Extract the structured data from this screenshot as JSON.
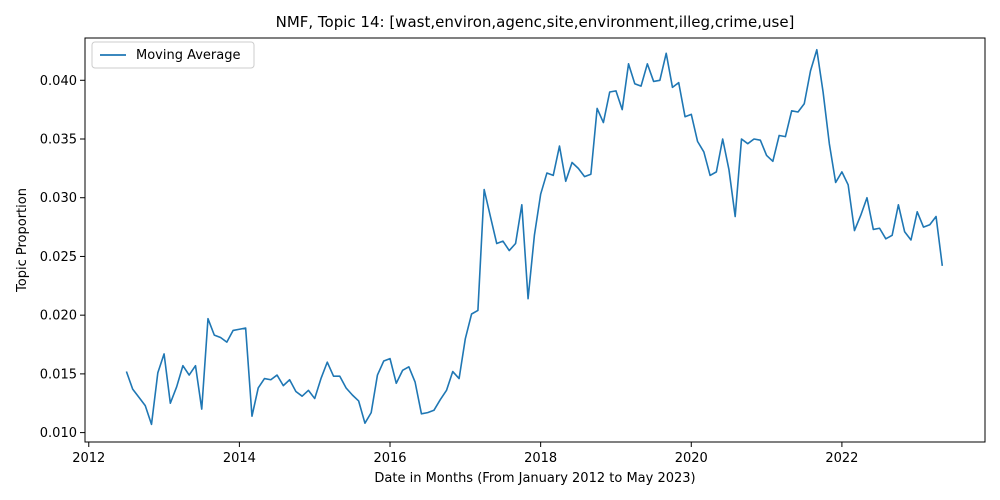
{
  "chart_data": {
    "type": "line",
    "title": "NMF, Topic 14: [wast,environ,agenc,site,environment,illeg,crime,use]",
    "xlabel": "Date in Months (From January 2012 to May 2023)",
    "ylabel": "Topic Proportion",
    "xlim": [
      2011.95,
      2023.9
    ],
    "ylim": [
      0.0092,
      0.0436
    ],
    "x_ticks": [
      2012,
      2014,
      2016,
      2018,
      2020,
      2022
    ],
    "y_ticks": [
      0.01,
      0.015,
      0.02,
      0.025,
      0.03,
      0.035,
      0.04
    ],
    "y_tick_labels": [
      "0.010",
      "0.015",
      "0.020",
      "0.025",
      "0.030",
      "0.035",
      "0.040"
    ],
    "grid": false,
    "legend_position": "top-left",
    "series": [
      {
        "name": "Moving Average",
        "color": "#1f77b4",
        "x": [
          2012.5,
          2012.583,
          2012.667,
          2012.75,
          2012.833,
          2012.917,
          2013.0,
          2013.083,
          2013.167,
          2013.25,
          2013.333,
          2013.417,
          2013.5,
          2013.583,
          2013.667,
          2013.75,
          2013.833,
          2013.917,
          2014.0,
          2014.083,
          2014.167,
          2014.25,
          2014.333,
          2014.417,
          2014.5,
          2014.583,
          2014.667,
          2014.75,
          2014.833,
          2014.917,
          2015.0,
          2015.083,
          2015.167,
          2015.25,
          2015.333,
          2015.417,
          2015.5,
          2015.583,
          2015.667,
          2015.75,
          2015.833,
          2015.917,
          2016.0,
          2016.083,
          2016.167,
          2016.25,
          2016.333,
          2016.417,
          2016.5,
          2016.583,
          2016.667,
          2016.75,
          2016.833,
          2016.917,
          2017.0,
          2017.083,
          2017.167,
          2017.25,
          2017.333,
          2017.417,
          2017.5,
          2017.583,
          2017.667,
          2017.75,
          2017.833,
          2017.917,
          2018.0,
          2018.083,
          2018.167,
          2018.25,
          2018.333,
          2018.417,
          2018.5,
          2018.583,
          2018.667,
          2018.75,
          2018.833,
          2018.917,
          2019.0,
          2019.083,
          2019.167,
          2019.25,
          2019.333,
          2019.417,
          2019.5,
          2019.583,
          2019.667,
          2019.75,
          2019.833,
          2019.917,
          2020.0,
          2020.083,
          2020.167,
          2020.25,
          2020.333,
          2020.417,
          2020.5,
          2020.583,
          2020.667,
          2020.75,
          2020.833,
          2020.917,
          2021.0,
          2021.083,
          2021.167,
          2021.25,
          2021.333,
          2021.417,
          2021.5,
          2021.583,
          2021.667,
          2021.75,
          2021.833,
          2021.917,
          2022.0,
          2022.083,
          2022.167,
          2022.25,
          2022.333,
          2022.417,
          2022.5,
          2022.583,
          2022.667,
          2022.75,
          2022.833,
          2022.917,
          2023.0,
          2023.083,
          2023.167,
          2023.25,
          2023.333
        ],
        "y": [
          0.0152,
          0.0137,
          0.013,
          0.0123,
          0.0107,
          0.0151,
          0.0167,
          0.0125,
          0.0139,
          0.0157,
          0.0149,
          0.0157,
          0.012,
          0.0197,
          0.0183,
          0.0181,
          0.0177,
          0.0187,
          0.0188,
          0.0189,
          0.0114,
          0.0138,
          0.0146,
          0.0145,
          0.0149,
          0.014,
          0.0145,
          0.0135,
          0.0131,
          0.0136,
          0.0129,
          0.0146,
          0.016,
          0.0148,
          0.0148,
          0.0138,
          0.0132,
          0.0127,
          0.0108,
          0.0117,
          0.0149,
          0.0161,
          0.0163,
          0.0142,
          0.0153,
          0.0156,
          0.0143,
          0.0116,
          0.0117,
          0.0119,
          0.0128,
          0.0136,
          0.0152,
          0.0146,
          0.018,
          0.0201,
          0.0204,
          0.0307,
          0.0284,
          0.0261,
          0.0263,
          0.0255,
          0.0261,
          0.0294,
          0.0214,
          0.0268,
          0.0303,
          0.0321,
          0.0319,
          0.0344,
          0.0314,
          0.033,
          0.0325,
          0.0318,
          0.032,
          0.0376,
          0.0364,
          0.039,
          0.0391,
          0.0375,
          0.0414,
          0.0397,
          0.0395,
          0.0414,
          0.0399,
          0.04,
          0.0423,
          0.0394,
          0.0398,
          0.0369,
          0.0371,
          0.0348,
          0.0339,
          0.0319,
          0.0322,
          0.035,
          0.0324,
          0.0284,
          0.035,
          0.0346,
          0.035,
          0.0349,
          0.0336,
          0.0331,
          0.0353,
          0.0352,
          0.0374,
          0.0373,
          0.038,
          0.0408,
          0.0426,
          0.039,
          0.0346,
          0.0313,
          0.0322,
          0.0311,
          0.0272,
          0.0285,
          0.03,
          0.0273,
          0.0274,
          0.0265,
          0.0268,
          0.0294,
          0.0271,
          0.0264,
          0.0288,
          0.0275,
          0.0277,
          0.0284,
          0.0242
        ]
      }
    ]
  }
}
